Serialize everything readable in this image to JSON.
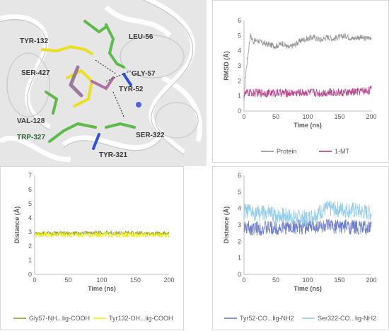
{
  "protein_view": {
    "residues": [
      {
        "label": "TYR-132",
        "color": "#3a3a3a"
      },
      {
        "label": "LEU-56",
        "color": "#3a3a3a"
      },
      {
        "label": "SER-427",
        "color": "#3a3a3a"
      },
      {
        "label": "GLY-57",
        "color": "#3a3a3a"
      },
      {
        "label": "TYR-52",
        "color": "#3a3a3a"
      },
      {
        "label": "VAL-128",
        "color": "#3a3a3a"
      },
      {
        "label": "TRP-327",
        "color": "#2e6b3a"
      },
      {
        "label": "SER-322",
        "color": "#3a3a3a"
      },
      {
        "label": "TYR-321",
        "color": "#3a3a3a"
      }
    ]
  },
  "chart_data": [
    {
      "id": "rmsd",
      "type": "line",
      "xlabel": "Time (ns)",
      "ylabel": "RMSD (Å)",
      "xlim": [
        0,
        200
      ],
      "ylim": [
        0,
        6
      ],
      "xticks": [
        "0",
        "50",
        "100",
        "150",
        "200"
      ],
      "yticks": [
        "0",
        "1",
        "2",
        "3",
        "4",
        "5",
        "6"
      ],
      "grid": false,
      "legend": "bottom",
      "series": [
        {
          "name": "Protein",
          "color": "#8c8c8c",
          "x": [
            0,
            2,
            4,
            6,
            8,
            10,
            15,
            20,
            30,
            40,
            50,
            60,
            70,
            80,
            90,
            100,
            110,
            120,
            130,
            140,
            150,
            160,
            170,
            180,
            190,
            200
          ],
          "values": [
            0.5,
            2.2,
            3.0,
            3.6,
            4.4,
            5.0,
            4.6,
            4.7,
            4.5,
            4.4,
            4.3,
            4.5,
            4.2,
            4.4,
            4.7,
            4.8,
            4.9,
            4.7,
            4.9,
            4.8,
            4.9,
            5.0,
            4.8,
            4.9,
            4.8,
            4.9
          ],
          "noise": 0.2
        },
        {
          "name": "1-MT",
          "color": "#b03080",
          "x": [
            0,
            5,
            10,
            20,
            40,
            60,
            80,
            100,
            120,
            140,
            160,
            180,
            200
          ],
          "values": [
            1.1,
            1.2,
            1.2,
            1.2,
            1.2,
            1.2,
            1.2,
            1.25,
            1.2,
            1.25,
            1.2,
            1.3,
            1.4
          ],
          "noise": 0.28
        }
      ]
    },
    {
      "id": "dist-gly-tyr",
      "type": "line",
      "xlabel": "Time (ns)",
      "ylabel": "Distance (Å)",
      "xlim": [
        0,
        200
      ],
      "ylim": [
        0,
        7
      ],
      "xticks": [
        "0",
        "50",
        "100",
        "150",
        "200"
      ],
      "yticks": [
        "0",
        "1",
        "2",
        "3",
        "4",
        "5",
        "6",
        "7"
      ],
      "grid": false,
      "legend": "bottom",
      "series": [
        {
          "name": "Gly57-NH...lig-COOH",
          "color": "#8a9a2a",
          "x": [
            0,
            50,
            100,
            150,
            200
          ],
          "values": [
            2.9,
            2.9,
            2.95,
            2.9,
            2.9
          ],
          "noise": 0.15
        },
        {
          "name": "Tyr132-OH...lig-COOH",
          "color": "#f0f000",
          "x": [
            0,
            50,
            100,
            150,
            200
          ],
          "values": [
            2.8,
            2.8,
            2.8,
            2.8,
            2.8
          ],
          "noise": 0.18
        }
      ]
    },
    {
      "id": "dist-tyr-ser",
      "type": "line",
      "xlabel": "Time (ns)",
      "ylabel": "Distance (Å)",
      "xlim": [
        0,
        200
      ],
      "ylim": [
        0,
        6
      ],
      "xticks": [
        "0",
        "50",
        "100",
        "150",
        "200"
      ],
      "yticks": [
        "0",
        "1",
        "2",
        "3",
        "4",
        "5",
        "6"
      ],
      "grid": false,
      "legend": "bottom",
      "series": [
        {
          "name": "Tyr52-CO...lig-NH2",
          "color": "#5b6fc8",
          "x": [
            0,
            50,
            100,
            150,
            200
          ],
          "values": [
            2.8,
            2.8,
            2.9,
            2.9,
            2.8
          ],
          "noise": 0.45
        },
        {
          "name": "Ser322-CO...lig-NH2",
          "color": "#87c8ea",
          "x": [
            0,
            50,
            100,
            130,
            170,
            200
          ],
          "values": [
            3.8,
            3.6,
            3.4,
            4.0,
            3.9,
            3.7
          ],
          "noise": 0.5
        }
      ]
    }
  ]
}
